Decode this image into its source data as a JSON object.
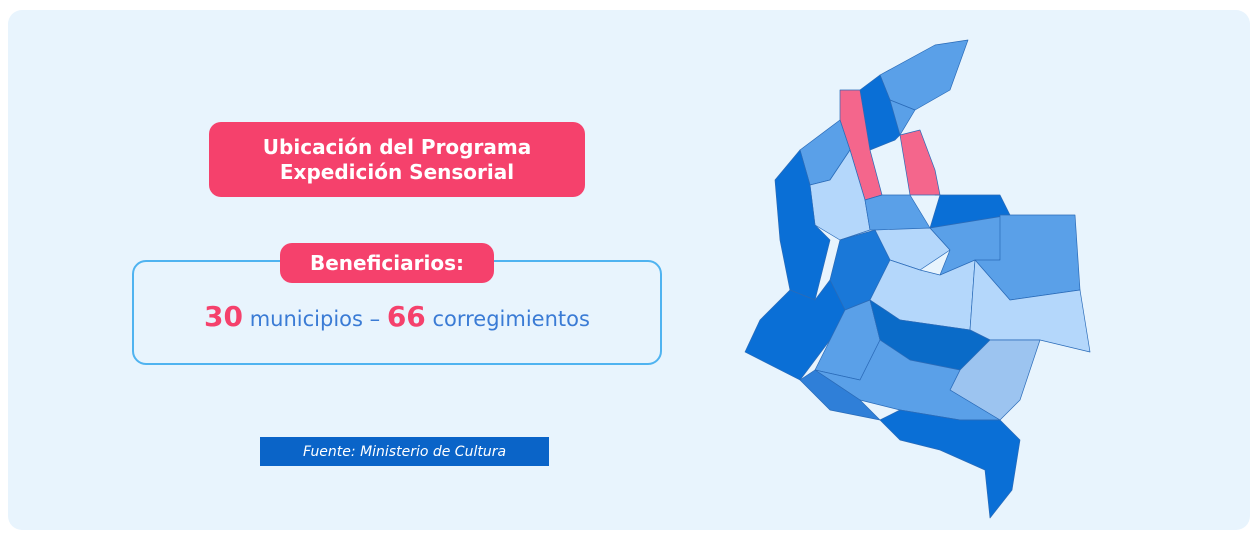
{
  "header": {
    "title_lines": [
      "Ubicación del Programa",
      "Expedición Sensorial"
    ]
  },
  "beneficiaries": {
    "label": "Beneficiarios:",
    "municipalities": {
      "count": 30,
      "text": "municipios –"
    },
    "townships": {
      "count": 66,
      "text": "corregimientos"
    }
  },
  "source": "Fuente: Ministerio de Cultura"
}
